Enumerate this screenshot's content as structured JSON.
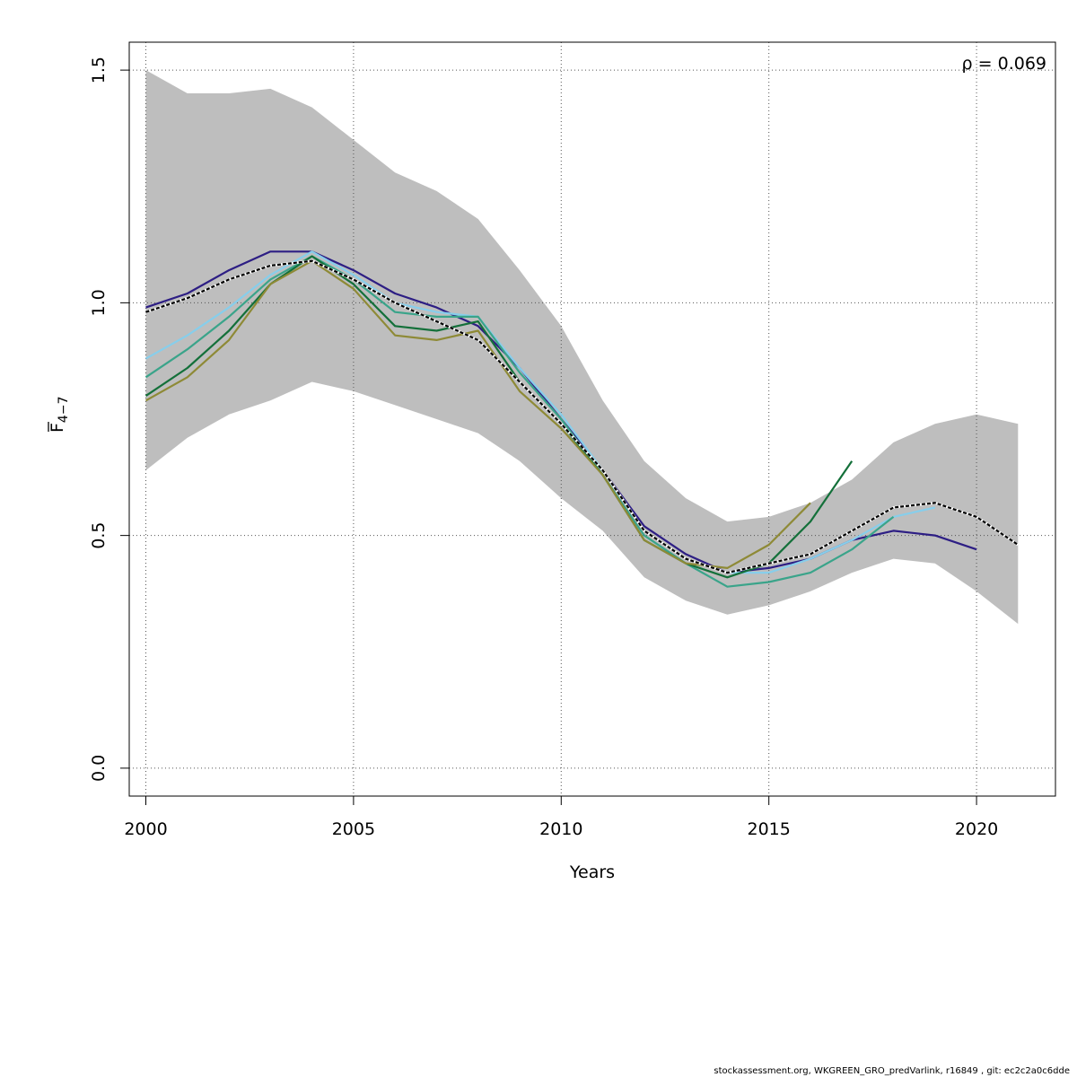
{
  "chart_data": {
    "type": "line",
    "xlabel": "Years",
    "ylabel_main": "F",
    "ylabel_sub": "4−7",
    "annotation": "ρ = 0.069",
    "xlim": [
      1999.6,
      2021.9
    ],
    "ylim": [
      -0.06,
      1.56
    ],
    "x_ticks": [
      2000,
      2005,
      2010,
      2015,
      2020
    ],
    "y_ticks": [
      0.0,
      0.5,
      1.0,
      1.5
    ],
    "y_tick_labels": [
      "0.0",
      "0.5",
      "1.0",
      "1.5"
    ],
    "grid": true,
    "confidence_band": {
      "color": "#bebebe",
      "x": [
        2000,
        2001,
        2002,
        2003,
        2004,
        2005,
        2006,
        2007,
        2008,
        2009,
        2010,
        2011,
        2012,
        2013,
        2014,
        2015,
        2016,
        2017,
        2018,
        2019,
        2020,
        2021
      ],
      "upper": [
        1.5,
        1.45,
        1.45,
        1.46,
        1.42,
        1.35,
        1.28,
        1.24,
        1.18,
        1.07,
        0.95,
        0.79,
        0.66,
        0.58,
        0.53,
        0.54,
        0.57,
        0.62,
        0.7,
        0.74,
        0.76,
        0.74
      ],
      "lower": [
        0.64,
        0.71,
        0.76,
        0.79,
        0.83,
        0.81,
        0.78,
        0.75,
        0.72,
        0.66,
        0.58,
        0.51,
        0.41,
        0.36,
        0.33,
        0.35,
        0.38,
        0.42,
        0.45,
        0.44,
        0.38,
        0.31
      ]
    },
    "series": [
      {
        "color": "#2d1e84",
        "width": 2.2,
        "x": [
          2000,
          2001,
          2002,
          2003,
          2004,
          2005,
          2006,
          2007,
          2008,
          2009,
          2010,
          2011,
          2012,
          2013,
          2014,
          2015,
          2016,
          2017,
          2018,
          2019,
          2020
        ],
        "values": [
          0.99,
          1.02,
          1.07,
          1.11,
          1.11,
          1.07,
          1.02,
          0.99,
          0.95,
          0.86,
          0.75,
          0.64,
          0.52,
          0.46,
          0.42,
          0.43,
          0.45,
          0.49,
          0.51,
          0.5,
          0.47
        ]
      },
      {
        "color": "#87ceeb",
        "width": 2.2,
        "x": [
          2000,
          2001,
          2002,
          2003,
          2004,
          2005,
          2006,
          2007,
          2008,
          2009,
          2010,
          2011,
          2012,
          2013,
          2014,
          2015,
          2016,
          2017,
          2018,
          2019
        ],
        "values": [
          0.88,
          0.93,
          0.99,
          1.06,
          1.11,
          1.06,
          1.0,
          0.98,
          0.97,
          0.86,
          0.76,
          0.64,
          0.51,
          0.45,
          0.42,
          0.42,
          0.45,
          0.49,
          0.54,
          0.56
        ]
      },
      {
        "color": "#3aa48a",
        "width": 2.2,
        "x": [
          2000,
          2001,
          2002,
          2003,
          2004,
          2005,
          2006,
          2007,
          2008,
          2009,
          2010,
          2011,
          2012,
          2013,
          2014,
          2015,
          2016,
          2017,
          2018
        ],
        "values": [
          0.84,
          0.9,
          0.97,
          1.05,
          1.1,
          1.05,
          0.98,
          0.97,
          0.97,
          0.85,
          0.75,
          0.63,
          0.5,
          0.44,
          0.39,
          0.4,
          0.42,
          0.47,
          0.54
        ]
      },
      {
        "color": "#14703a",
        "width": 2.2,
        "x": [
          2000,
          2001,
          2002,
          2003,
          2004,
          2005,
          2006,
          2007,
          2008,
          2009,
          2010,
          2011,
          2012,
          2013,
          2014,
          2015,
          2016,
          2017
        ],
        "values": [
          0.8,
          0.86,
          0.94,
          1.04,
          1.1,
          1.04,
          0.95,
          0.94,
          0.96,
          0.83,
          0.74,
          0.63,
          0.49,
          0.44,
          0.41,
          0.44,
          0.53,
          0.66
        ]
      },
      {
        "color": "#8e8a36",
        "width": 2.2,
        "x": [
          2000,
          2001,
          2002,
          2003,
          2004,
          2005,
          2006,
          2007,
          2008,
          2009,
          2010,
          2011,
          2012,
          2013,
          2014,
          2015,
          2016
        ],
        "values": [
          0.79,
          0.84,
          0.92,
          1.04,
          1.09,
          1.03,
          0.93,
          0.92,
          0.94,
          0.81,
          0.73,
          0.63,
          0.49,
          0.44,
          0.43,
          0.48,
          0.57
        ]
      },
      {
        "color": "#000000",
        "width": 2.2,
        "dashed": true,
        "x": [
          2000,
          2001,
          2002,
          2003,
          2004,
          2005,
          2006,
          2007,
          2008,
          2009,
          2010,
          2011,
          2012,
          2013,
          2014,
          2015,
          2016,
          2017,
          2018,
          2019,
          2020,
          2021
        ],
        "values": [
          0.98,
          1.01,
          1.05,
          1.08,
          1.09,
          1.05,
          1.0,
          0.96,
          0.92,
          0.83,
          0.74,
          0.64,
          0.51,
          0.45,
          0.42,
          0.44,
          0.46,
          0.51,
          0.56,
          0.57,
          0.54,
          0.48
        ]
      }
    ]
  },
  "footer": "stockassessment.org, WKGREEN_GRO_predVarlink, r16849 , git: ec2c2a0c6dde"
}
